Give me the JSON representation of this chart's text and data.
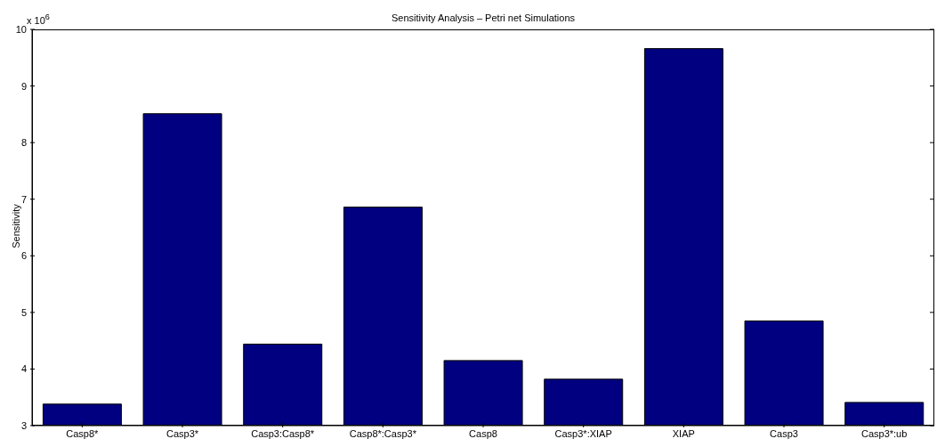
{
  "chart_data": {
    "type": "bar",
    "title": "Sensitivity Analysis – Petri net Simulations",
    "ylabel": "Sensitivity",
    "annotations": [
      "x 10$^{6}$"
    ],
    "categories": [
      "Casp8*",
      "Casp3*",
      "Casp3:Casp8*",
      "Casp8*:Casp3*",
      "Casp8",
      "Casp3*:XIAP",
      "XIAP",
      "Casp3",
      "Casp3*:ub"
    ],
    "values": [
      3.38,
      8.51,
      4.44,
      6.86,
      4.15,
      3.82,
      9.66,
      4.85,
      3.41
    ],
    "color": "#000080",
    "ylim": [
      3,
      10
    ],
    "yticks": [
      3,
      4,
      5,
      6,
      7,
      8,
      9,
      10
    ],
    "grid": false,
    "legend": false
  }
}
